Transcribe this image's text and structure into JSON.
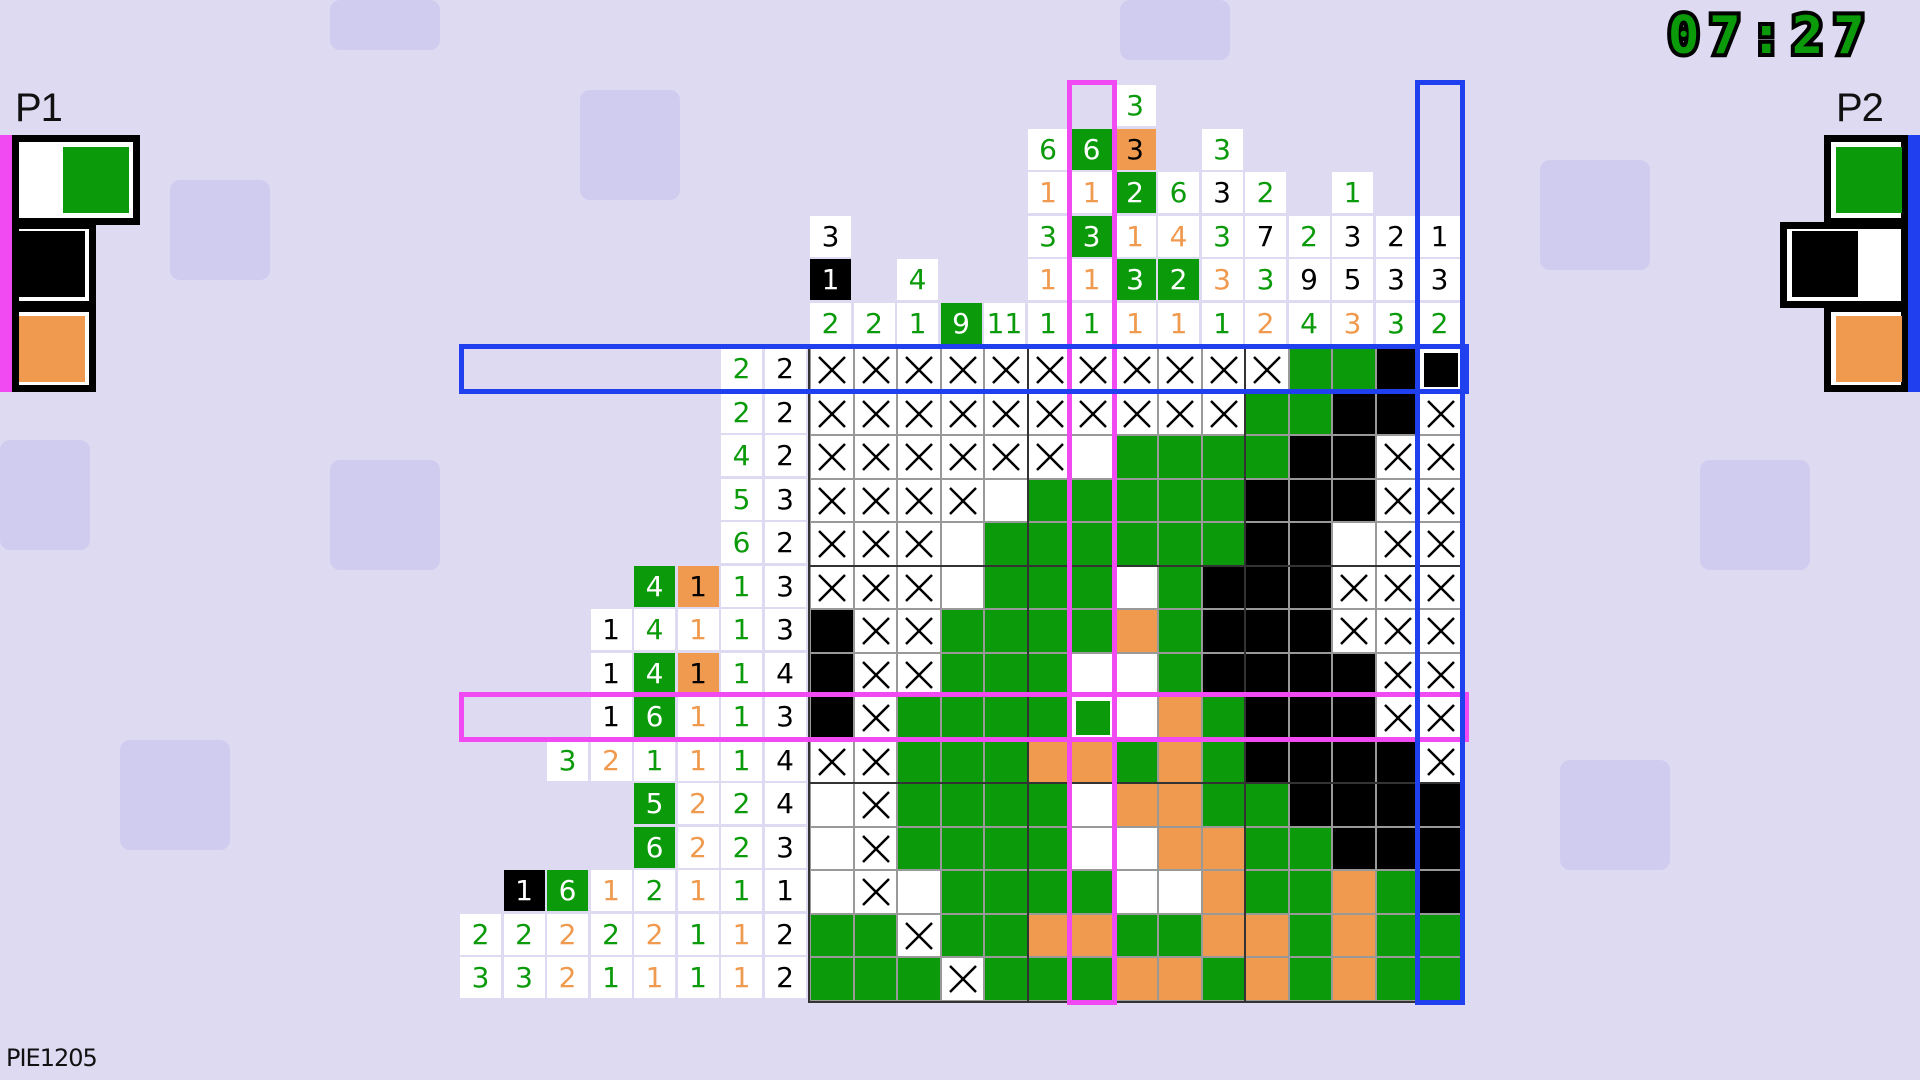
{
  "colors": {
    "green": "#0a9a0a",
    "black": "#000000",
    "orange": "#ef9a4e",
    "p1": "#f24af2",
    "p2": "#2040f0",
    "background": "#dedaf2"
  },
  "timer": "07:27",
  "puzzle_code": "PIE1205",
  "players": [
    {
      "label": "P1",
      "selected_color": "green",
      "palette": [
        "green",
        "black",
        "orange"
      ],
      "highlight_row": 8,
      "highlight_col": 6
    },
    {
      "label": "P2",
      "selected_color": "black",
      "palette": [
        "green",
        "black",
        "orange"
      ],
      "highlight_row": 0,
      "highlight_col": 14
    }
  ],
  "column_clues": [
    [
      {
        "n": 3,
        "color": "black"
      },
      {
        "n": 1,
        "color": "black",
        "marked": true
      },
      {
        "n": 2,
        "color": "green"
      }
    ],
    [
      {
        "n": 2,
        "color": "green"
      }
    ],
    [
      {
        "n": 4,
        "color": "green"
      },
      {
        "n": 1,
        "color": "green"
      }
    ],
    [
      {
        "n": 9,
        "color": "green",
        "marked": true
      }
    ],
    [
      {
        "n": 11,
        "color": "green"
      }
    ],
    [
      {
        "n": 6,
        "color": "green"
      },
      {
        "n": 1,
        "color": "orange"
      },
      {
        "n": 3,
        "color": "green"
      },
      {
        "n": 1,
        "color": "orange"
      },
      {
        "n": 1,
        "color": "green"
      }
    ],
    [
      {
        "n": 6,
        "color": "green",
        "marked": true
      },
      {
        "n": 1,
        "color": "orange"
      },
      {
        "n": 3,
        "color": "green",
        "marked": true
      },
      {
        "n": 1,
        "color": "orange"
      },
      {
        "n": 1,
        "color": "green"
      }
    ],
    [
      {
        "n": 3,
        "color": "green"
      },
      {
        "n": 3,
        "color": "orange",
        "marked": true
      },
      {
        "n": 2,
        "color": "green",
        "marked": true
      },
      {
        "n": 1,
        "color": "orange"
      },
      {
        "n": 3,
        "color": "green",
        "marked": true
      },
      {
        "n": 1,
        "color": "orange"
      }
    ],
    [
      {
        "n": 6,
        "color": "green"
      },
      {
        "n": 4,
        "color": "orange"
      },
      {
        "n": 2,
        "color": "green",
        "marked": true
      },
      {
        "n": 1,
        "color": "orange"
      }
    ],
    [
      {
        "n": 3,
        "color": "green"
      },
      {
        "n": 3,
        "color": "black"
      },
      {
        "n": 3,
        "color": "green"
      },
      {
        "n": 3,
        "color": "orange"
      },
      {
        "n": 1,
        "color": "green"
      }
    ],
    [
      {
        "n": 2,
        "color": "green"
      },
      {
        "n": 7,
        "color": "black"
      },
      {
        "n": 3,
        "color": "green"
      },
      {
        "n": 2,
        "color": "orange"
      }
    ],
    [
      {
        "n": 2,
        "color": "green"
      },
      {
        "n": 9,
        "color": "black"
      },
      {
        "n": 4,
        "color": "green"
      }
    ],
    [
      {
        "n": 1,
        "color": "green"
      },
      {
        "n": 3,
        "color": "black"
      },
      {
        "n": 5,
        "color": "black"
      },
      {
        "n": 3,
        "color": "orange"
      }
    ],
    [
      {
        "n": 2,
        "color": "black"
      },
      {
        "n": 3,
        "color": "black"
      },
      {
        "n": 3,
        "color": "green"
      }
    ],
    [
      {
        "n": 1,
        "color": "black"
      },
      {
        "n": 3,
        "color": "black"
      },
      {
        "n": 2,
        "color": "green"
      }
    ]
  ],
  "row_clues": [
    [
      {
        "n": 2,
        "color": "green"
      },
      {
        "n": 2,
        "color": "black"
      }
    ],
    [
      {
        "n": 2,
        "color": "green"
      },
      {
        "n": 2,
        "color": "black"
      }
    ],
    [
      {
        "n": 4,
        "color": "green"
      },
      {
        "n": 2,
        "color": "black"
      }
    ],
    [
      {
        "n": 5,
        "color": "green"
      },
      {
        "n": 3,
        "color": "black"
      }
    ],
    [
      {
        "n": 6,
        "color": "green"
      },
      {
        "n": 2,
        "color": "black"
      }
    ],
    [
      {
        "n": 4,
        "color": "green",
        "marked": true
      },
      {
        "n": 1,
        "color": "orange",
        "marked": true
      },
      {
        "n": 1,
        "color": "green"
      },
      {
        "n": 3,
        "color": "black"
      }
    ],
    [
      {
        "n": 1,
        "color": "black"
      },
      {
        "n": 4,
        "color": "green"
      },
      {
        "n": 1,
        "color": "orange"
      },
      {
        "n": 1,
        "color": "green"
      },
      {
        "n": 3,
        "color": "black"
      }
    ],
    [
      {
        "n": 1,
        "color": "black"
      },
      {
        "n": 4,
        "color": "green",
        "marked": true
      },
      {
        "n": 1,
        "color": "orange",
        "marked": true
      },
      {
        "n": 1,
        "color": "green"
      },
      {
        "n": 4,
        "color": "black"
      }
    ],
    [
      {
        "n": 1,
        "color": "black"
      },
      {
        "n": 6,
        "color": "green",
        "marked": true
      },
      {
        "n": 1,
        "color": "orange"
      },
      {
        "n": 1,
        "color": "green"
      },
      {
        "n": 3,
        "color": "black"
      }
    ],
    [
      {
        "n": 3,
        "color": "green"
      },
      {
        "n": 2,
        "color": "orange"
      },
      {
        "n": 1,
        "color": "green"
      },
      {
        "n": 1,
        "color": "orange"
      },
      {
        "n": 1,
        "color": "green"
      },
      {
        "n": 4,
        "color": "black"
      }
    ],
    [
      {
        "n": 5,
        "color": "green",
        "marked": true
      },
      {
        "n": 2,
        "color": "orange"
      },
      {
        "n": 2,
        "color": "green"
      },
      {
        "n": 4,
        "color": "black"
      }
    ],
    [
      {
        "n": 6,
        "color": "green",
        "marked": true
      },
      {
        "n": 2,
        "color": "orange"
      },
      {
        "n": 2,
        "color": "green"
      },
      {
        "n": 3,
        "color": "black"
      }
    ],
    [
      {
        "n": 1,
        "color": "black",
        "marked": true
      },
      {
        "n": 6,
        "color": "green",
        "marked": true
      },
      {
        "n": 1,
        "color": "orange"
      },
      {
        "n": 2,
        "color": "green"
      },
      {
        "n": 1,
        "color": "orange"
      },
      {
        "n": 1,
        "color": "green"
      },
      {
        "n": 1,
        "color": "black"
      }
    ],
    [
      {
        "n": 2,
        "color": "green"
      },
      {
        "n": 2,
        "color": "green"
      },
      {
        "n": 2,
        "color": "orange"
      },
      {
        "n": 2,
        "color": "green"
      },
      {
        "n": 2,
        "color": "orange"
      },
      {
        "n": 1,
        "color": "green"
      },
      {
        "n": 1,
        "color": "orange"
      },
      {
        "n": 2,
        "color": "black"
      }
    ],
    [
      {
        "n": 3,
        "color": "green"
      },
      {
        "n": 3,
        "color": "green"
      },
      {
        "n": 2,
        "color": "orange"
      },
      {
        "n": 1,
        "color": "green"
      },
      {
        "n": 1,
        "color": "orange"
      },
      {
        "n": 1,
        "color": "green"
      },
      {
        "n": 1,
        "color": "orange"
      },
      {
        "n": 2,
        "color": "black"
      }
    ]
  ],
  "grid_legend": {
    "X": "crossed",
    "G": "green",
    "K": "black",
    "O": "orange",
    ".": "empty"
  },
  "grid": [
    "XXXXXXXXXXXGGKK",
    "XXXXXXXXXXGGKKX",
    "XXXXXX.GGGGKKXX",
    "XXXX.GGGGGKKKXX",
    "XXX.GGGGGGKK.XX",
    "XXX.GGG.GKKKXXX",
    "KXXGGGGOGKKKXXX",
    "KXXGGG..GKKKKXX",
    "KXGGGGG.OGKKKXX",
    "XXGGGOOGOGKKKKX",
    ".XGGGG.OOGGKKKK",
    ".XGGGG..OOGGKKK",
    ".X.GGGG..OGGOGK",
    "GGXGGOOGGOOGOGG",
    "GGGXGGGOOGOGOGG"
  ],
  "cursors": [
    {
      "player": "P1",
      "row": 8,
      "col": 6
    },
    {
      "player": "P2",
      "row": 0,
      "col": 14
    }
  ]
}
